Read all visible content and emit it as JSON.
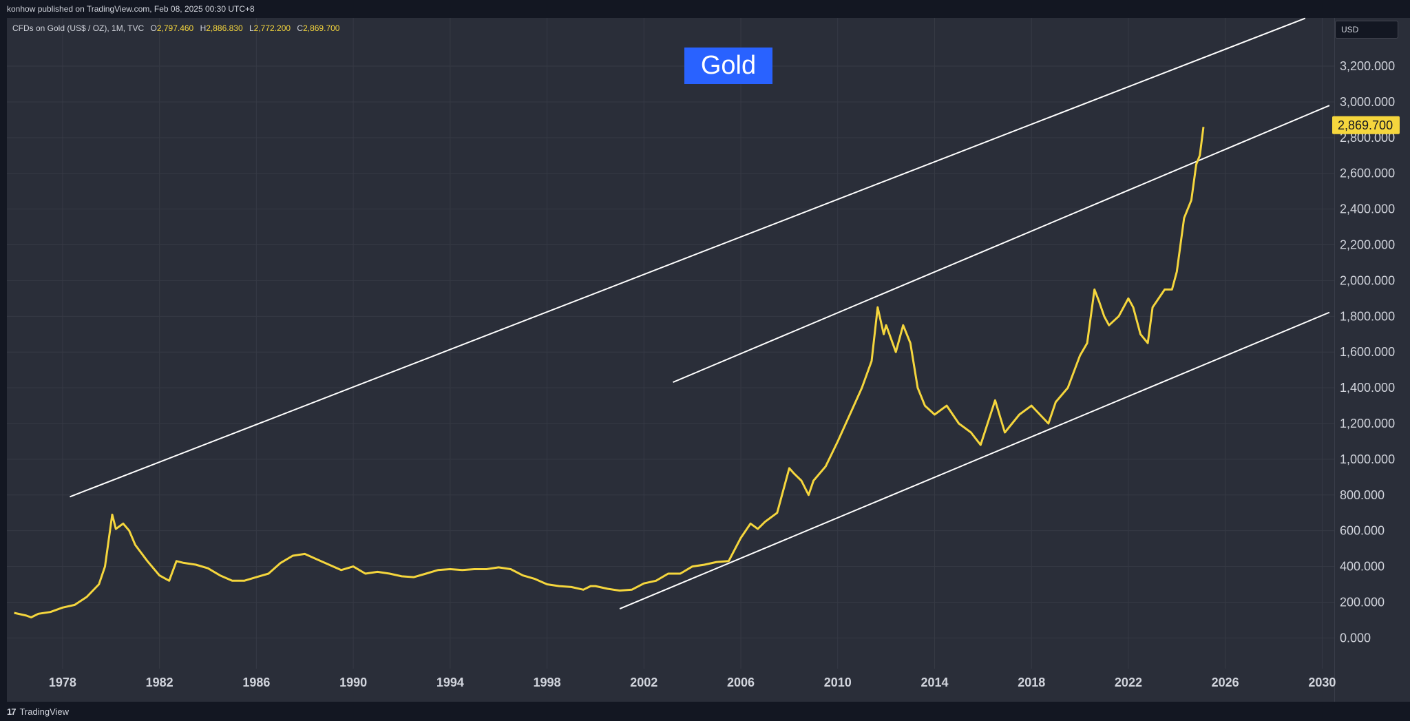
{
  "header": {
    "published_text": "konhow published on TradingView.com, Feb 08, 2025 00:30 UTC+8"
  },
  "legend": {
    "symbol": "CFDs on Gold (US$ / OZ), 1M, TVC",
    "o_label": "O",
    "o_value": "2,797.460",
    "h_label": "H",
    "h_value": "2,886.830",
    "l_label": "L",
    "l_value": "2,772.200",
    "c_label": "C",
    "c_value": "2,869.700"
  },
  "title_box": {
    "text": "Gold",
    "color": "#2962ff"
  },
  "currency_selector": {
    "label": "USD"
  },
  "price_label": {
    "text": "2,869.700",
    "color": "#f5d63d"
  },
  "footer": {
    "brand": "TradingView",
    "logo_glyph": "17"
  },
  "colors": {
    "background": "#2a2e39",
    "candle": "#f5d63d",
    "trendline": "#ffffff",
    "grid": "#363a45"
  },
  "chart_data": {
    "type": "line",
    "series": [
      {
        "x": [
          1976.0,
          1976.5,
          1976.7,
          1977.0,
          1977.5,
          1978.0,
          1978.5,
          1979.0,
          1979.5,
          1979.75,
          1980.05,
          1980.2,
          1980.5,
          1980.75,
          1981.0,
          1981.5,
          1982.0,
          1982.4,
          1982.7,
          1983.0,
          1983.5,
          1984.0,
          1984.5,
          1985.0,
          1985.5,
          1986.0,
          1986.5,
          1987.0,
          1987.5,
          1988.0,
          1988.5,
          1989.0,
          1989.5,
          1990.0,
          1990.5,
          1991.0,
          1991.5,
          1992.0,
          1992.5,
          1993.0,
          1993.5,
          1994.0,
          1994.5,
          1995.0,
          1995.5,
          1996.0,
          1996.5,
          1997.0,
          1997.5,
          1998.0,
          1998.5,
          1999.0,
          1999.5,
          1999.8,
          2000.0,
          2000.5,
          2001.0,
          2001.5,
          2002.0,
          2002.5,
          2003.0,
          2003.5,
          2004.0,
          2004.5,
          2005.0,
          2005.5,
          2006.0,
          2006.4,
          2006.7,
          2007.0,
          2007.5,
          2008.0,
          2008.2,
          2008.5,
          2008.8,
          2009.0,
          2009.5,
          2010.0,
          2010.5,
          2011.0,
          2011.4,
          2011.65,
          2011.9,
          2012.0,
          2012.4,
          2012.7,
          2013.0,
          2013.3,
          2013.6,
          2014.0,
          2014.5,
          2015.0,
          2015.5,
          2015.9,
          2016.5,
          2016.9,
          2017.5,
          2018.0,
          2018.7,
          2019.0,
          2019.5,
          2020.0,
          2020.3,
          2020.6,
          2020.8,
          2021.0,
          2021.2,
          2021.6,
          2022.0,
          2022.2,
          2022.5,
          2022.8,
          2023.0,
          2023.5,
          2023.8,
          2024.0,
          2024.3,
          2024.6,
          2024.8,
          2024.95,
          2025.1
        ],
        "values": [
          140,
          125,
          115,
          135,
          145,
          170,
          185,
          230,
          300,
          400,
          690,
          610,
          640,
          600,
          520,
          430,
          350,
          320,
          430,
          420,
          410,
          390,
          350,
          320,
          320,
          340,
          360,
          420,
          460,
          470,
          440,
          410,
          380,
          400,
          360,
          370,
          360,
          345,
          340,
          360,
          380,
          385,
          380,
          385,
          385,
          395,
          385,
          350,
          330,
          300,
          290,
          285,
          270,
          290,
          290,
          275,
          265,
          270,
          305,
          320,
          360,
          360,
          400,
          410,
          425,
          430,
          560,
          640,
          610,
          650,
          700,
          950,
          920,
          880,
          800,
          880,
          960,
          1100,
          1250,
          1400,
          1550,
          1850,
          1700,
          1750,
          1600,
          1750,
          1650,
          1400,
          1300,
          1250,
          1300,
          1200,
          1150,
          1080,
          1330,
          1150,
          1250,
          1300,
          1200,
          1320,
          1400,
          1580,
          1650,
          1950,
          1880,
          1800,
          1750,
          1800,
          1900,
          1850,
          1700,
          1650,
          1850,
          1950,
          1950,
          2050,
          2350,
          2450,
          2650,
          2700,
          2860
        ],
        "color": "#f5d63d"
      }
    ],
    "trendlines": [
      {
        "x": [
          1978.3,
          2029.3
        ],
        "y": [
          790,
          3468
        ]
      },
      {
        "x": [
          2003.2,
          2030.3
        ],
        "y": [
          1431,
          2980
        ]
      },
      {
        "x": [
          2001.0,
          2030.3
        ],
        "y": [
          163,
          1822
        ]
      }
    ],
    "y_ticks": [
      "0.000",
      "200.000",
      "400.000",
      "600.000",
      "800.000",
      "1,000.000",
      "1,200.000",
      "1,400.000",
      "1,600.000",
      "1,800.000",
      "2,000.000",
      "2,200.000",
      "2,400.000",
      "2,600.000",
      "2,800.000",
      "3,000.000",
      "3,200.000"
    ],
    "y_tick_values": [
      0,
      200,
      400,
      600,
      800,
      1000,
      1200,
      1400,
      1600,
      1800,
      2000,
      2200,
      2400,
      2600,
      2800,
      3000,
      3200
    ],
    "x_ticks": [
      "1978",
      "1982",
      "1986",
      "1990",
      "1994",
      "1998",
      "2002",
      "2006",
      "2010",
      "2014",
      "2018",
      "2022",
      "2026",
      "2030"
    ],
    "x_tick_values": [
      1978,
      1982,
      1986,
      1990,
      1994,
      1998,
      2002,
      2006,
      2010,
      2014,
      2018,
      2022,
      2026,
      2030
    ],
    "xlim": [
      1975.7,
      2030.5
    ],
    "ylim": [
      -172,
      3470
    ],
    "grid": true,
    "last_price": 2869.7
  }
}
